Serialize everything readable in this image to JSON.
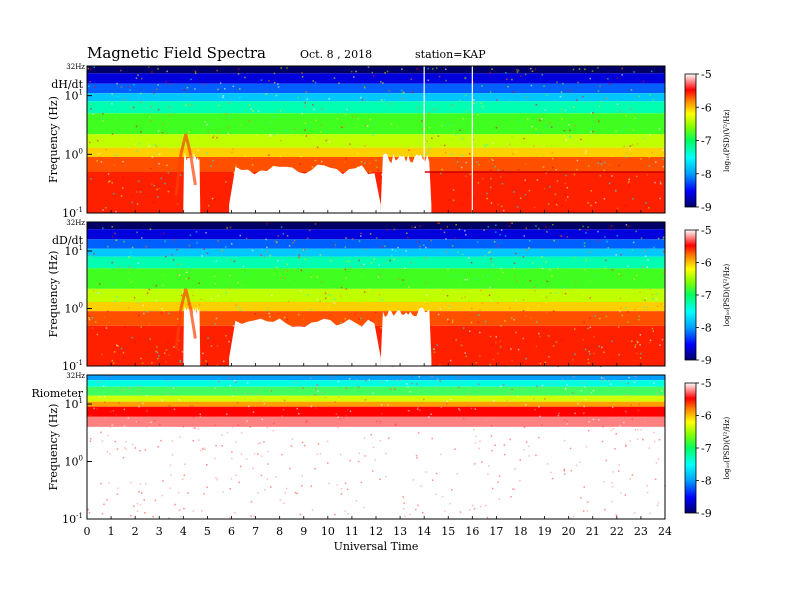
{
  "header": {
    "title": "Magnetic Field Spectra",
    "date": "Oct. 8 , 2018",
    "station": "station=KAP"
  },
  "colors": {
    "scale": [
      "#000066",
      "#0000ff",
      "#00a0ff",
      "#00ffff",
      "#00ff80",
      "#40ff00",
      "#ffff00",
      "#ff8000",
      "#ff0000",
      "#ffffff"
    ]
  },
  "chart_data": [
    {
      "type": "heatmap",
      "panel_label": "dH/dt",
      "top_label": "32Hz",
      "ylabel": "Frequency (Hz)",
      "yscale": "log",
      "yticks": [
        {
          "base": "10",
          "exp": "-1"
        },
        {
          "base": "10",
          "exp": "0"
        },
        {
          "base": "10",
          "exp": "1"
        }
      ],
      "ylim": [
        0.1,
        32
      ],
      "x_range": [
        0,
        24
      ],
      "colorbar": {
        "label": "log₁₀(PSD)(V²/Hz)",
        "ticks": [
          "-5",
          "-6",
          "-7",
          "-8",
          "-9"
        ],
        "range": [
          -9,
          -5
        ]
      }
    },
    {
      "type": "heatmap",
      "panel_label": "dD/dt",
      "top_label": "32Hz",
      "ylabel": "Frequency (Hz)",
      "yscale": "log",
      "yticks": [
        {
          "base": "10",
          "exp": "-1"
        },
        {
          "base": "10",
          "exp": "0"
        },
        {
          "base": "10",
          "exp": "1"
        }
      ],
      "ylim": [
        0.1,
        32
      ],
      "x_range": [
        0,
        24
      ],
      "colorbar": {
        "label": "log₁₀(PSD)(V²/Hz)",
        "ticks": [
          "-5",
          "-6",
          "-7",
          "-8",
          "-9"
        ],
        "range": [
          -9,
          -5
        ]
      }
    },
    {
      "type": "heatmap",
      "panel_label": "Riometer",
      "top_label": "32Hz",
      "ylabel": "Frequency (Hz)",
      "yscale": "log",
      "yticks": [
        {
          "base": "10",
          "exp": "-1"
        },
        {
          "base": "10",
          "exp": "0"
        },
        {
          "base": "10",
          "exp": "1"
        }
      ],
      "ylim": [
        0.1,
        32
      ],
      "x_range": [
        0,
        24
      ],
      "xlabel": "Universal Time",
      "xticks": [
        "0",
        "1",
        "2",
        "3",
        "4",
        "5",
        "6",
        "7",
        "8",
        "9",
        "10",
        "11",
        "12",
        "13",
        "14",
        "15",
        "16",
        "17",
        "18",
        "19",
        "20",
        "21",
        "22",
        "23",
        "24"
      ],
      "colorbar": {
        "label": "log₁₀(PSD)(V²/Hz)",
        "ticks": [
          "-5",
          "-6",
          "-7",
          "-8",
          "-9"
        ],
        "range": [
          -9,
          -5
        ]
      }
    }
  ],
  "features": {
    "white_vertical_lines_ut": [
      14.0,
      16.0
    ],
    "reference_line_hz": 0.5
  }
}
